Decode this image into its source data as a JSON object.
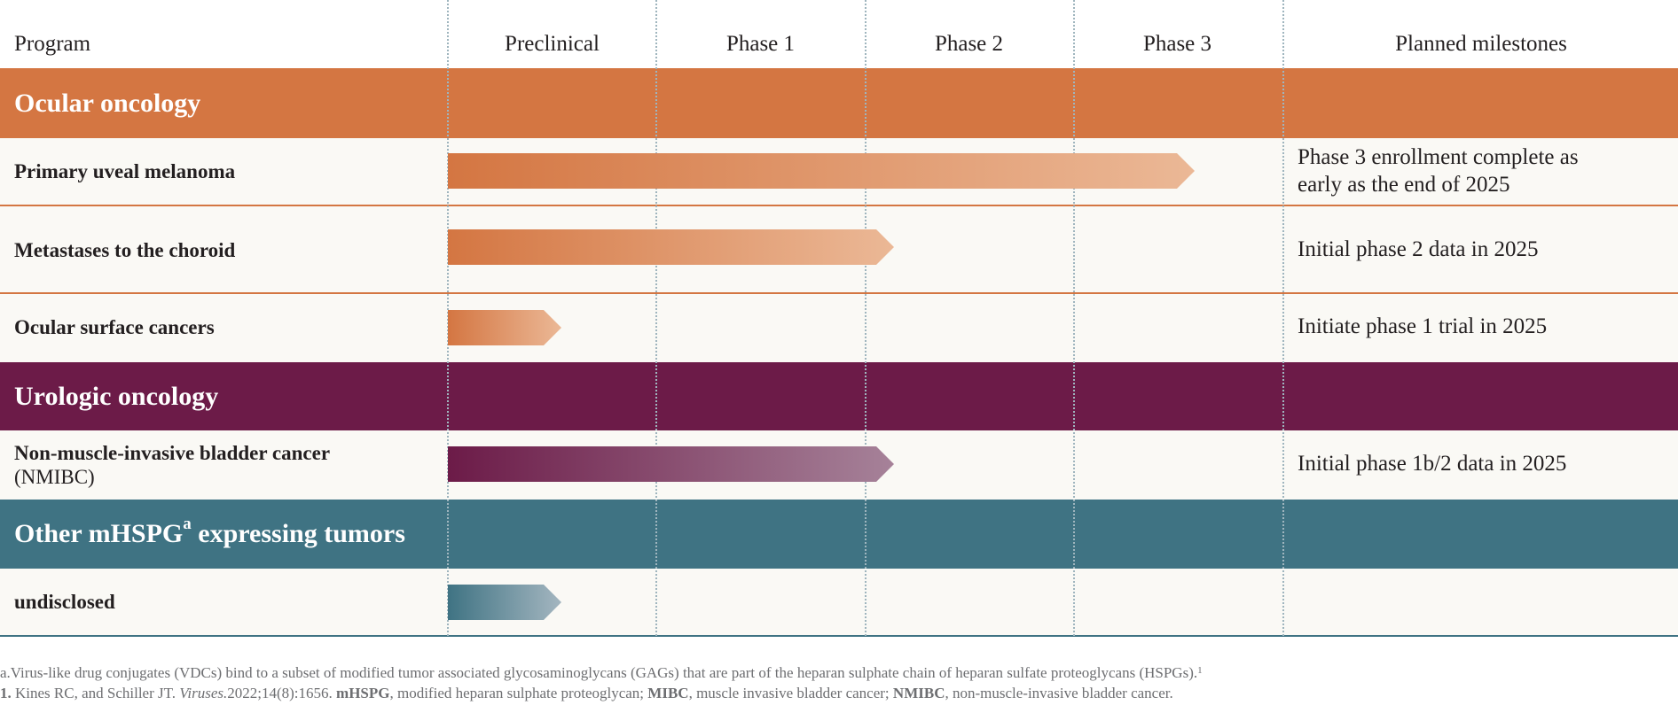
{
  "header": {
    "program": "Program",
    "phases": [
      "Preclinical",
      "Phase 1",
      "Phase 2",
      "Phase 3"
    ],
    "milestones": "Planned milestones"
  },
  "colors": {
    "ocular": "#d47642",
    "urologic": "#6c1b48",
    "other": "#3f7383",
    "row_bg": "#faf9f5",
    "gridline": "#9fb5be"
  },
  "sections": {
    "ocular": {
      "title": "Ocular oncology"
    },
    "urologic": {
      "title": "Urologic oncology"
    },
    "other": {
      "title_main": "Other mHSPG",
      "title_sup": "a",
      "title_rest": " expressing tumors"
    }
  },
  "programs": [
    {
      "name": "Primary uveal melanoma",
      "sub": "",
      "stage": "Phase 3",
      "milestone_line1": "Phase 3 enrollment complete as",
      "milestone_line2": "early as the end of 2025"
    },
    {
      "name": "Metastases to the choroid",
      "sub": "",
      "stage": "Phase 2",
      "milestone_line1": "Initial phase 2 data in 2025",
      "milestone_line2": ""
    },
    {
      "name": "Ocular surface cancers",
      "sub": "",
      "stage": "Preclinical",
      "milestone_line1": "Initiate phase 1 trial in 2025",
      "milestone_line2": ""
    },
    {
      "name": "Non-muscle-invasive bladder cancer",
      "sub": "(NMIBC)",
      "stage": "Phase 2",
      "milestone_line1": "Initial phase 1b/2 data in 2025",
      "milestone_line2": ""
    },
    {
      "name": "undisclosed",
      "sub": "",
      "stage": "Preclinical",
      "milestone_line1": "",
      "milestone_line2": ""
    }
  ],
  "footnotes": {
    "a_text": "a.Virus-like drug conjugates (VDCs) bind to a subset of modified tumor associated glycosaminoglycans (GAGs) that are part of the heparan sulphate chain of heparan sulfate proteoglycans (HSPGs).",
    "a_sup": "1",
    "ref_num": "1.",
    "ref_authors": " Kines RC, and Schiller JT. ",
    "ref_journal": "Viruses.",
    "ref_rest": "2022;14(8):1656. ",
    "abbr1_term": "mHSPG",
    "abbr1_def": ", modified heparan sulphate proteoglycan; ",
    "abbr2_term": "MIBC",
    "abbr2_def": ", muscle invasive bladder cancer; ",
    "abbr3_term": "NMIBC",
    "abbr3_def": ", non-muscle-invasive bladder cancer."
  }
}
